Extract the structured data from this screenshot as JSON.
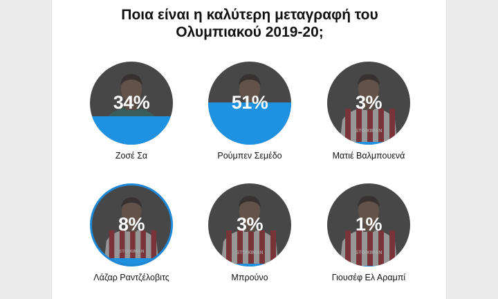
{
  "poll": {
    "title_line1": "Ποια είναι η καλύτερη μεταγραφή του",
    "title_line2": "Ολυμπιακού 2019-20;"
  },
  "options": [
    {
      "name": "Ζοσέ Σα",
      "percent": 34,
      "percent_label": "34%",
      "shirt": "goalkeeper",
      "selected": false
    },
    {
      "name": "Ρούμπεν Σεμέδο",
      "percent": 51,
      "percent_label": "51%",
      "shirt": "away",
      "selected": false
    },
    {
      "name": "Ματιέ Βαλμπουενά",
      "percent": 3,
      "percent_label": "3%",
      "shirt": "home",
      "selected": false
    },
    {
      "name": "Λάζαρ Ραντζέλοβιτς",
      "percent": 8,
      "percent_label": "8%",
      "shirt": "home",
      "selected": true
    },
    {
      "name": "Μπρούνο",
      "percent": 3,
      "percent_label": "3%",
      "shirt": "home",
      "selected": false
    },
    {
      "name": "Γιουσέφ Ελ Αραμπί",
      "percent": 1,
      "percent_label": "1%",
      "shirt": "home",
      "selected": false
    }
  ],
  "colors": {
    "vote_fill": "#1e91e1",
    "selected_ring": "#1e88d6",
    "circle_bg": "#474747",
    "home_shirt_red": "#a3242f",
    "home_shirt_white": "#d9d9d9",
    "gk_shirt": "#2d6f6a",
    "away_shirt": "#f0f0f0"
  },
  "sponsor_text": "STOIXIMAN"
}
